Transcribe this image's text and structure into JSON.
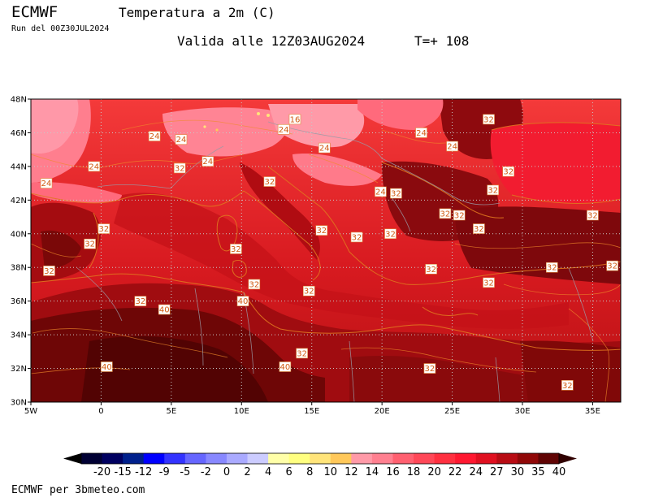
{
  "header": {
    "brand": "ECMWF",
    "title": "Temperatura a 2m (C)",
    "run": "Run del 00Z30JUL2024",
    "valid": "Valida alle 12Z03AUG2024",
    "tplus": "T=+ 108"
  },
  "footer": {
    "credit": "ECMWF per 3bmeteo.com"
  },
  "map": {
    "lat_labels": [
      "48N",
      "46N",
      "44N",
      "42N",
      "40N",
      "38N",
      "36N",
      "34N",
      "32N",
      "30N"
    ],
    "lon_labels": [
      "5W",
      "0",
      "5E",
      "10E",
      "15E",
      "20E",
      "25E",
      "30E",
      "35E"
    ],
    "lat_range": [
      30,
      48
    ],
    "lon_range": [
      -5,
      37
    ],
    "grid": true,
    "contour_labels": [
      {
        "text": "16",
        "lon": 13.8,
        "lat": 46.8
      },
      {
        "text": "24",
        "lon": 3.8,
        "lat": 45.8
      },
      {
        "text": "24",
        "lon": 5.7,
        "lat": 45.6
      },
      {
        "text": "24",
        "lon": 13.0,
        "lat": 46.2
      },
      {
        "text": "24",
        "lon": -0.5,
        "lat": 44.0
      },
      {
        "text": "24",
        "lon": -3.9,
        "lat": 43.0
      },
      {
        "text": "24",
        "lon": 7.6,
        "lat": 44.3
      },
      {
        "text": "24",
        "lon": 15.9,
        "lat": 45.1
      },
      {
        "text": "24",
        "lon": 22.8,
        "lat": 46.0
      },
      {
        "text": "24",
        "lon": 25.0,
        "lat": 45.2
      },
      {
        "text": "24",
        "lon": 19.9,
        "lat": 42.5
      },
      {
        "text": "32",
        "lon": 27.6,
        "lat": 46.8
      },
      {
        "text": "32",
        "lon": 5.6,
        "lat": 43.9
      },
      {
        "text": "32",
        "lon": 12.0,
        "lat": 43.1
      },
      {
        "text": "32",
        "lon": 29.0,
        "lat": 43.7
      },
      {
        "text": "32",
        "lon": 21.0,
        "lat": 42.4
      },
      {
        "text": "32",
        "lon": 27.9,
        "lat": 42.6
      },
      {
        "text": "32",
        "lon": 24.5,
        "lat": 41.2
      },
      {
        "text": "32",
        "lon": 25.5,
        "lat": 41.1
      },
      {
        "text": "32",
        "lon": 35.0,
        "lat": 41.1
      },
      {
        "text": "32",
        "lon": 0.2,
        "lat": 40.3
      },
      {
        "text": "32",
        "lon": -0.8,
        "lat": 39.4
      },
      {
        "text": "32",
        "lon": 15.7,
        "lat": 40.2
      },
      {
        "text": "32",
        "lon": 18.2,
        "lat": 39.8
      },
      {
        "text": "32",
        "lon": 20.6,
        "lat": 40.0
      },
      {
        "text": "32",
        "lon": 26.9,
        "lat": 40.3
      },
      {
        "text": "32",
        "lon": 9.6,
        "lat": 39.1
      },
      {
        "text": "32",
        "lon": -3.7,
        "lat": 37.8
      },
      {
        "text": "32",
        "lon": 23.5,
        "lat": 37.9
      },
      {
        "text": "32",
        "lon": 32.1,
        "lat": 38.0
      },
      {
        "text": "32",
        "lon": 36.4,
        "lat": 38.1
      },
      {
        "text": "32",
        "lon": 10.9,
        "lat": 37.0
      },
      {
        "text": "32",
        "lon": 27.6,
        "lat": 37.1
      },
      {
        "text": "32",
        "lon": 14.8,
        "lat": 36.6
      },
      {
        "text": "32",
        "lon": 2.8,
        "lat": 36.0
      },
      {
        "text": "40",
        "lon": 4.5,
        "lat": 35.5
      },
      {
        "text": "40",
        "lon": 10.1,
        "lat": 36.0
      },
      {
        "text": "32",
        "lon": 14.3,
        "lat": 32.9
      },
      {
        "text": "40",
        "lon": 13.1,
        "lat": 32.1
      },
      {
        "text": "40",
        "lon": 0.4,
        "lat": 32.1
      },
      {
        "text": "32",
        "lon": 23.4,
        "lat": 32.0
      },
      {
        "text": "32",
        "lon": 33.2,
        "lat": 31.0
      }
    ]
  },
  "colorbar": {
    "labels": [
      "-20",
      "-15",
      "-12",
      "-9",
      "-5",
      "-2",
      "0",
      "2",
      "4",
      "6",
      "8",
      "10",
      "12",
      "14",
      "16",
      "18",
      "20",
      "22",
      "24",
      "27",
      "30",
      "35",
      "40"
    ],
    "colors": [
      "#000033",
      "#000060",
      "#00208c",
      "#0000ff",
      "#3333ff",
      "#6666ff",
      "#8888ff",
      "#aaaaff",
      "#ccccff",
      "#ffffa8",
      "#ffff80",
      "#ffe47a",
      "#ffc85a",
      "#ff9aa8",
      "#ff8090",
      "#ff6070",
      "#ff4858",
      "#ff3040",
      "#ff1830",
      "#e01020",
      "#b80c14",
      "#900808",
      "#600404"
    ],
    "left_arrow_color": "#000000",
    "right_arrow_color": "#300000"
  }
}
